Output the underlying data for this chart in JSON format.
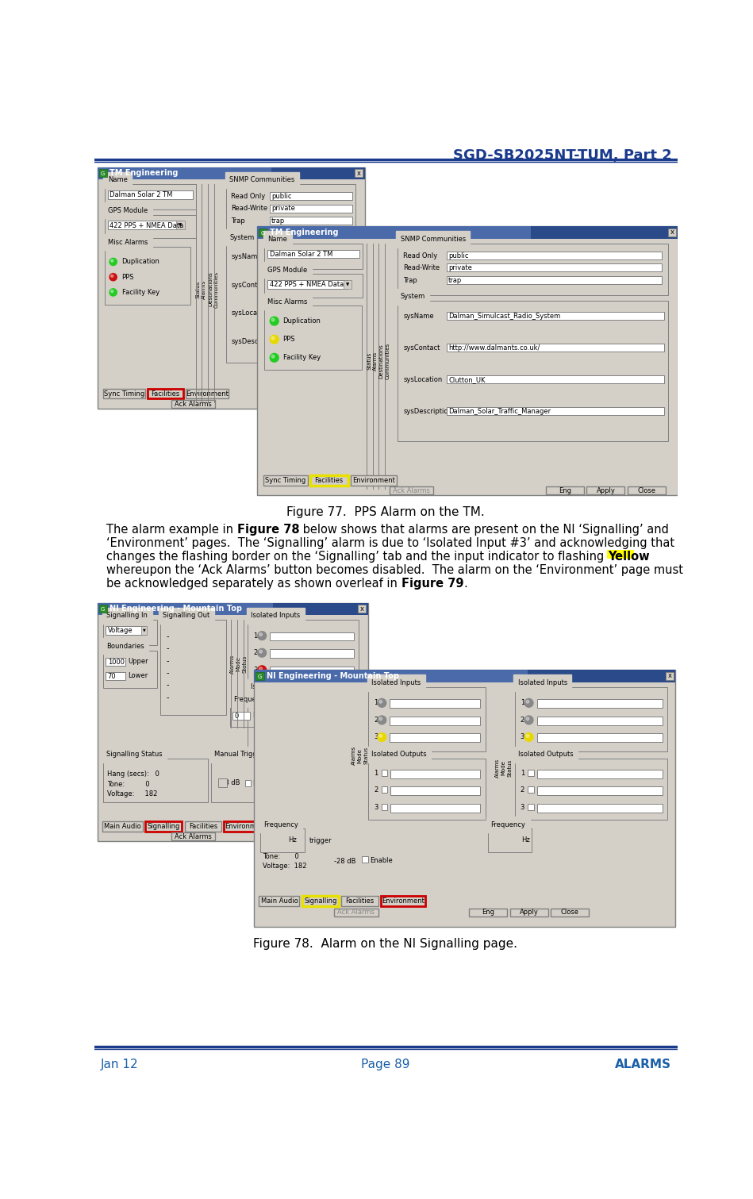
{
  "title": "SGD-SB2025NT-TUM, Part 2",
  "title_color": "#1a3a8c",
  "header_line_color": "#1a3a8c",
  "footer_left": "Jan 12",
  "footer_center": "Page 89",
  "footer_right": "ALARMS",
  "footer_color": "#1a5fa8",
  "fig77_caption": "Figure 77.  PPS Alarm on the TM.",
  "fig78_caption": "Figure 78.  Alarm on the NI Signalling page.",
  "bg_color": "#ffffff",
  "win_bg": "#d4d0c8",
  "win_title_dark": "#2a4a8a",
  "win_title_light": "#6a8ac8",
  "white": "#ffffff",
  "grey_border": "#808080",
  "red_border": "#cc0000",
  "yellow_border": "#e8e000",
  "green_ind": "#22cc22",
  "red_ind": "#cc1111",
  "yellow_ind": "#e8d800",
  "grey_ind": "#888888"
}
